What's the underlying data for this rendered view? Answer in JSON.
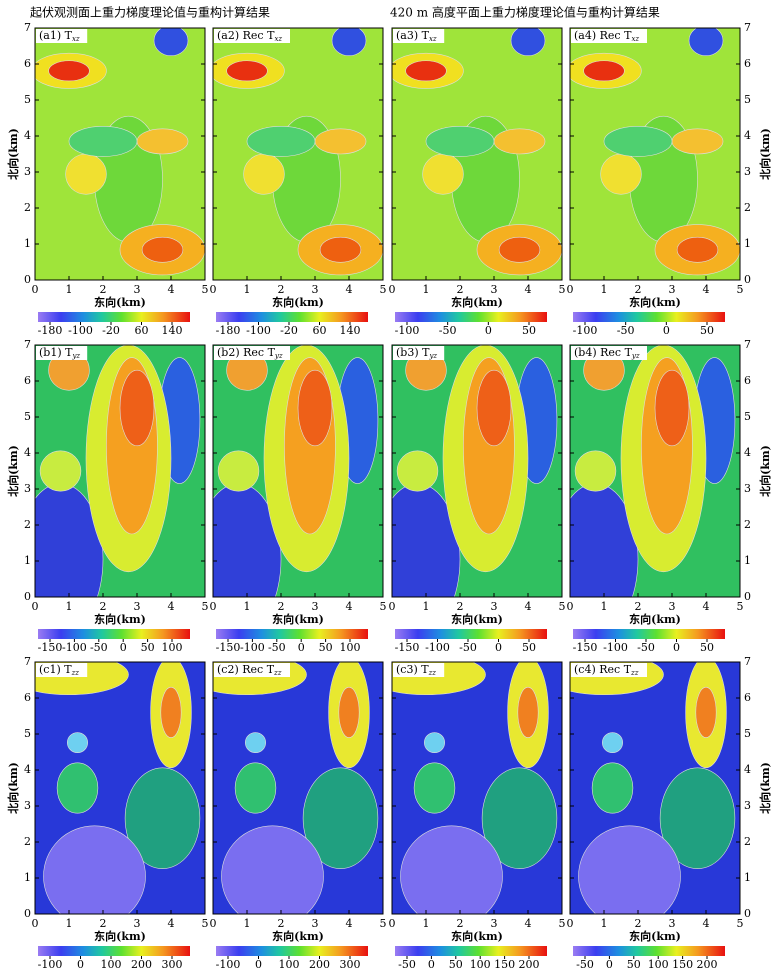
{
  "headings": [
    "起伏观测面上重力梯度理论值与重构计算结果",
    "420 m 高度平面上重力梯度理论值与重构计算结果"
  ],
  "x_axis": {
    "label": "东向(km)",
    "ticks": [
      0,
      1,
      2,
      3,
      4,
      5
    ]
  },
  "y_axis": {
    "label": "北向(km)",
    "ticks": [
      0,
      1,
      2,
      3,
      4,
      5,
      6,
      7
    ]
  },
  "rows": [
    {
      "panels": [
        {
          "label": "(a1) T",
          "sub": "xz",
          "colorbar": [
            -180,
            -100,
            -20,
            60,
            140
          ]
        },
        {
          "label": "(a2) Rec T",
          "sub": "xz",
          "colorbar": [
            -180,
            -100,
            -20,
            60,
            140
          ]
        },
        {
          "label": "(a3) T",
          "sub": "xz",
          "colorbar": [
            -100,
            -50,
            0,
            50
          ]
        },
        {
          "label": "(a4) Rec T",
          "sub": "xz",
          "colorbar": [
            -100,
            -50,
            0,
            50
          ]
        }
      ]
    },
    {
      "panels": [
        {
          "label": "(b1) T",
          "sub": "yz",
          "colorbar": [
            -150,
            -100,
            -50,
            0,
            50,
            100
          ]
        },
        {
          "label": "(b2) Rec T",
          "sub": "yz",
          "colorbar": [
            -150,
            -100,
            -50,
            0,
            50,
            100
          ]
        },
        {
          "label": "(b3) T",
          "sub": "yz",
          "colorbar": [
            -150,
            -100,
            -50,
            0,
            50
          ]
        },
        {
          "label": "(b4) Rec T",
          "sub": "yz",
          "colorbar": [
            -150,
            -100,
            -50,
            0,
            50
          ]
        }
      ]
    },
    {
      "panels": [
        {
          "label": "(c1) T",
          "sub": "zz",
          "colorbar": [
            -100,
            0,
            100,
            200,
            300
          ]
        },
        {
          "label": "(c2) Rec T",
          "sub": "zz",
          "colorbar": [
            -100,
            0,
            100,
            200,
            300
          ]
        },
        {
          "label": "(c3) T",
          "sub": "zz",
          "colorbar": [
            -50,
            0,
            50,
            100,
            150,
            200
          ]
        },
        {
          "label": "(c4) Rec T",
          "sub": "zz",
          "colorbar": [
            -50,
            0,
            50,
            100,
            150,
            200
          ]
        }
      ]
    }
  ]
}
